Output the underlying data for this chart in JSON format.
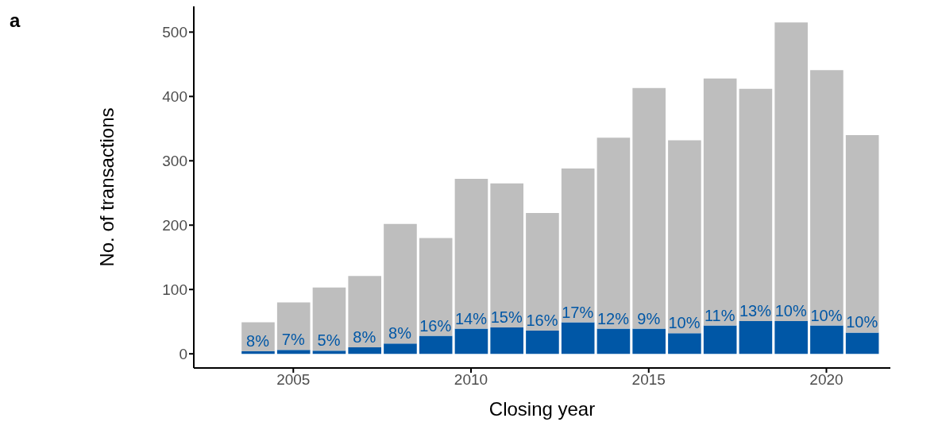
{
  "chart_data": {
    "type": "bar",
    "xlabel": "Closing year",
    "ylabel": "No. of transactions",
    "annotations": [
      "a",
      {
        "text": "8%",
        "x": 2004,
        "y": 4
      },
      {
        "text": "7%",
        "x": 2005,
        "y": 6
      },
      {
        "text": "5%",
        "x": 2006,
        "y": 5
      },
      {
        "text": "8%",
        "x": 2007,
        "y": 10
      },
      {
        "text": "8%",
        "x": 2008,
        "y": 16
      },
      {
        "text": "16%",
        "x": 2009,
        "y": 28
      },
      {
        "text": "14%",
        "x": 2010,
        "y": 39
      },
      {
        "text": "15%",
        "x": 2011,
        "y": 41
      },
      {
        "text": "16%",
        "x": 2012,
        "y": 36
      },
      {
        "text": "17%",
        "x": 2013,
        "y": 49
      },
      {
        "text": "12%",
        "x": 2014,
        "y": 39
      },
      {
        "text": "9%",
        "x": 2015,
        "y": 39
      },
      {
        "text": "10%",
        "x": 2016,
        "y": 32
      },
      {
        "text": "11%",
        "x": 2017,
        "y": 44
      },
      {
        "text": "13%",
        "x": 2018,
        "y": 51
      },
      {
        "text": "10%",
        "x": 2019,
        "y": 51
      },
      {
        "text": "10%",
        "x": 2020,
        "y": 44
      },
      {
        "text": "10%",
        "x": 2021,
        "y": 33
      }
    ],
    "x": [
      2004,
      2005,
      2006,
      2007,
      2008,
      2009,
      2010,
      2011,
      2012,
      2013,
      2014,
      2015,
      2016,
      2017,
      2018,
      2019,
      2020,
      2021
    ],
    "stacked": true,
    "series": [
      {
        "color": "#0057a6",
        "values": [
          4,
          6,
          5,
          10,
          16,
          28,
          39,
          41,
          36,
          49,
          39,
          39,
          32,
          44,
          51,
          51,
          44,
          33
        ]
      },
      {
        "color": "#bebebe",
        "values": [
          45,
          74,
          98,
          111,
          186,
          152,
          233,
          224,
          183,
          239,
          297,
          374,
          300,
          384,
          361,
          464,
          397,
          307
        ]
      }
    ],
    "xlim": [
      2002.2,
      2021.8
    ],
    "xticks": [
      2005,
      2010,
      2015,
      2020
    ],
    "ylim": [
      -22,
      540
    ],
    "yticks": [
      0,
      100,
      200,
      300,
      400,
      500
    ],
    "grid": false
  }
}
